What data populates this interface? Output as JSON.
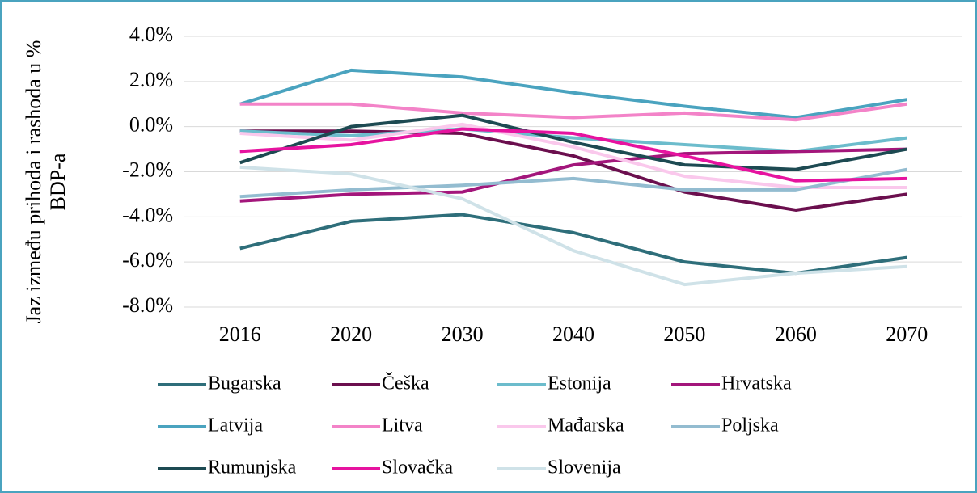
{
  "chart_data": {
    "type": "line",
    "y_label": "Jaz između prihoda i rashoda u % BDP-a",
    "categories": [
      "2016",
      "2020",
      "2030",
      "2040",
      "2050",
      "2060",
      "2070"
    ],
    "ylim": [
      -8,
      4
    ],
    "yticks": [
      {
        "value": 4,
        "label": "4.0%"
      },
      {
        "value": 2,
        "label": "2.0%"
      },
      {
        "value": 0,
        "label": "0.0%"
      },
      {
        "value": -2,
        "label": "-2.0%"
      },
      {
        "value": -4,
        "label": "-4.0%"
      },
      {
        "value": -6,
        "label": "-6.0%"
      },
      {
        "value": -8,
        "label": "-8.0%"
      }
    ],
    "grid": true,
    "legend": "bottom",
    "series": [
      {
        "name": "Bugarska",
        "color": "#2e6e7a",
        "values": [
          -5.4,
          -4.2,
          -3.9,
          -4.7,
          -6.0,
          -6.5,
          -5.8
        ]
      },
      {
        "name": "Češka",
        "color": "#6b0f4e",
        "values": [
          -0.2,
          -0.2,
          -0.3,
          -1.3,
          -2.9,
          -3.7,
          -3.0
        ]
      },
      {
        "name": "Estonija",
        "color": "#6cbccc",
        "values": [
          -0.2,
          -0.4,
          -0.1,
          -0.5,
          -0.8,
          -1.1,
          -0.5
        ]
      },
      {
        "name": "Hrvatska",
        "color": "#a3167b",
        "values": [
          -3.3,
          -3.0,
          -2.9,
          -1.7,
          -1.2,
          -1.1,
          -1.0
        ]
      },
      {
        "name": "Latvija",
        "color": "#4aa3bf",
        "values": [
          1.0,
          2.5,
          2.2,
          1.5,
          0.9,
          0.4,
          1.2
        ]
      },
      {
        "name": "Litva",
        "color": "#f383c8",
        "values": [
          1.0,
          1.0,
          0.6,
          0.4,
          0.6,
          0.3,
          1.0
        ]
      },
      {
        "name": "Mađarska",
        "color": "#fac8ec",
        "values": [
          -0.3,
          -0.6,
          0.1,
          -0.9,
          -2.2,
          -2.7,
          -2.7
        ]
      },
      {
        "name": "Poljska",
        "color": "#93bcd0",
        "values": [
          -3.1,
          -2.8,
          -2.6,
          -2.3,
          -2.8,
          -2.8,
          -1.9
        ]
      },
      {
        "name": "Rumunjska",
        "color": "#1d4a52",
        "values": [
          -1.6,
          0.0,
          0.5,
          -0.7,
          -1.7,
          -1.9,
          -1.0
        ]
      },
      {
        "name": "Slovačka",
        "color": "#e6139f",
        "values": [
          -1.1,
          -0.8,
          -0.1,
          -0.3,
          -1.3,
          -2.4,
          -2.3
        ]
      },
      {
        "name": "Slovenija",
        "color": "#cfe2e8",
        "values": [
          -1.8,
          -2.1,
          -3.2,
          -5.5,
          -7.0,
          -6.5,
          -6.2
        ]
      }
    ]
  }
}
